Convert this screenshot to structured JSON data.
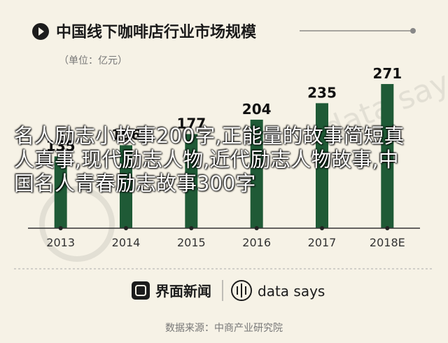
{
  "header": {
    "title": "中国线下咖啡店行业市场规模",
    "unit": "（单位：亿元）"
  },
  "chart_data": {
    "type": "bar",
    "title": "中国线下咖啡店行业市场规模",
    "subtitle": "（单位：亿元）",
    "categories": [
      "2013",
      "2014",
      "2015",
      "2016",
      "2017",
      "2018E"
    ],
    "values": [
      135,
      156,
      177,
      204,
      235,
      271
    ],
    "ylim": [
      0,
      300
    ],
    "grid": false,
    "bar_color": "#1f5a36"
  },
  "footer": {
    "brand_1": "界面新闻",
    "brand_2": "data says",
    "source": "数据来源：中商产业研究院"
  },
  "overlay": {
    "caption": "名人励志小故事200字,正能量的故事简短真人真事,现代励志人物,近代励志人物故事,中国名人青春励志故事300字"
  },
  "colors": {
    "background": "#f6f2e6",
    "bar": "#1f5a36",
    "title_dot": "#1c1c1c",
    "axis": "#333333"
  }
}
